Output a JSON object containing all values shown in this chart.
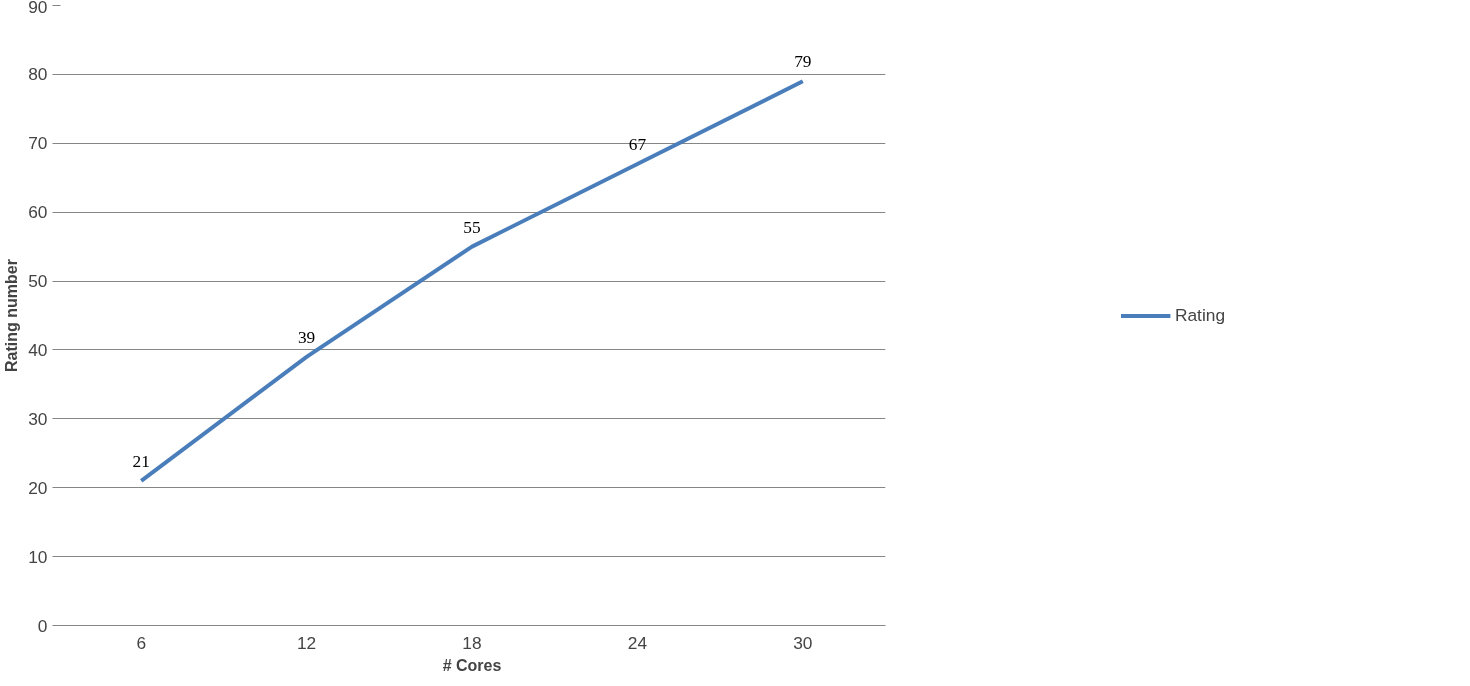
{
  "chart_data": {
    "type": "line",
    "xlabel": "# Cores",
    "ylabel": "Rating number",
    "categories": [
      "6",
      "12",
      "18",
      "24",
      "30"
    ],
    "series": [
      {
        "name": "Rating",
        "color": "#4a7ebb",
        "values": [
          21,
          39,
          55,
          67,
          79
        ]
      }
    ],
    "ylim": [
      0,
      90
    ],
    "yticks": [
      0,
      10,
      20,
      30,
      40,
      50,
      60,
      70,
      80,
      90
    ],
    "grid": "y",
    "legend": "right",
    "data_labels": true,
    "marker": "none",
    "line_style": "solid"
  }
}
